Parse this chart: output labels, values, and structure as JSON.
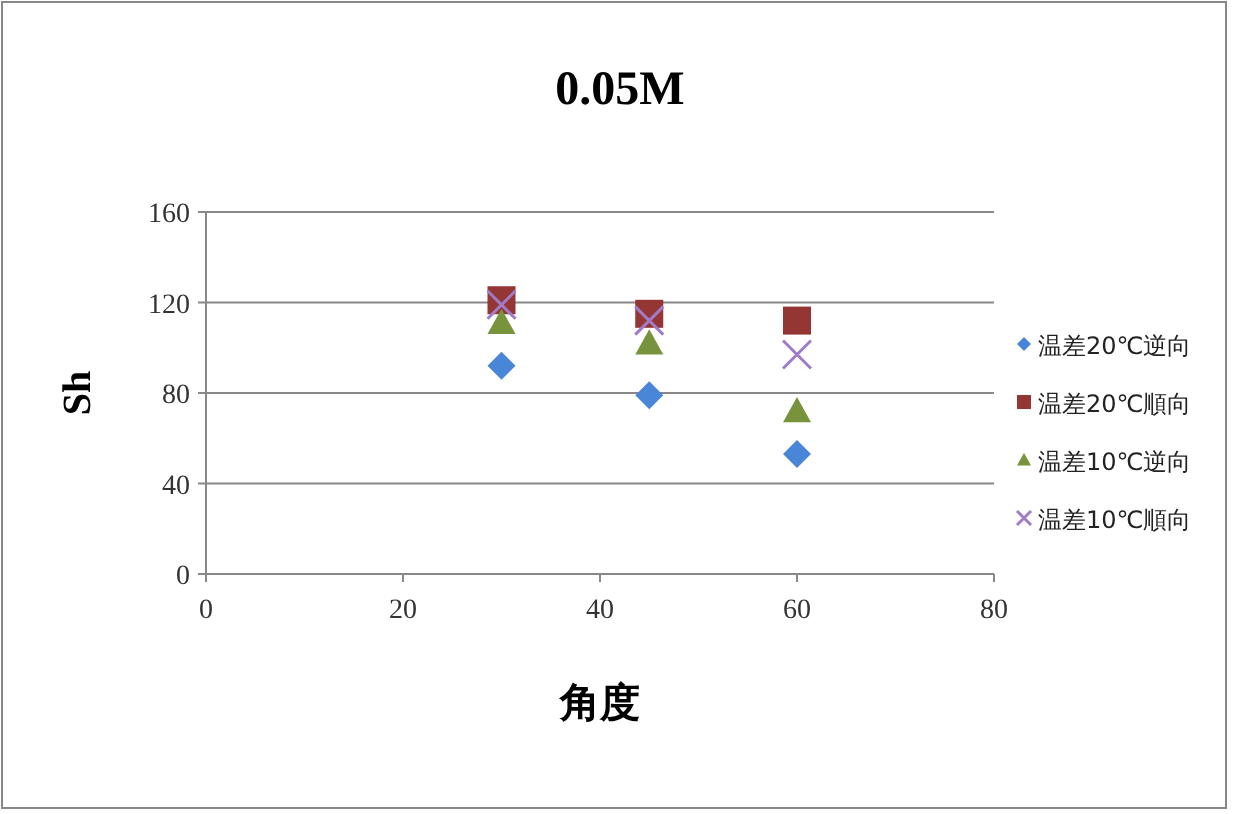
{
  "chart_data": {
    "type": "scatter",
    "title": "0.05M",
    "xlabel": "角度",
    "ylabel": "Sh",
    "xlim": [
      0,
      80
    ],
    "xticks": [
      0,
      20,
      40,
      60,
      80
    ],
    "ylim": [
      0,
      160
    ],
    "yticks": [
      0,
      40,
      80,
      120,
      160
    ],
    "grid": "y",
    "legend": "right",
    "x": [
      30,
      45,
      60
    ],
    "series": [
      {
        "name": "温差20℃逆向",
        "color": "#4a86d8",
        "marker": "diamond",
        "values": [
          92,
          79,
          53
        ]
      },
      {
        "name": "温差20℃順向",
        "color": "#943634",
        "marker": "square",
        "values": [
          121,
          115,
          112
        ]
      },
      {
        "name": "温差10℃逆向",
        "color": "#77933c",
        "marker": "triangle",
        "values": [
          111,
          102,
          72
        ]
      },
      {
        "name": "温差10℃順向",
        "color": "#a07cc8",
        "marker": "cross",
        "values": [
          119,
          112,
          97
        ]
      }
    ]
  }
}
